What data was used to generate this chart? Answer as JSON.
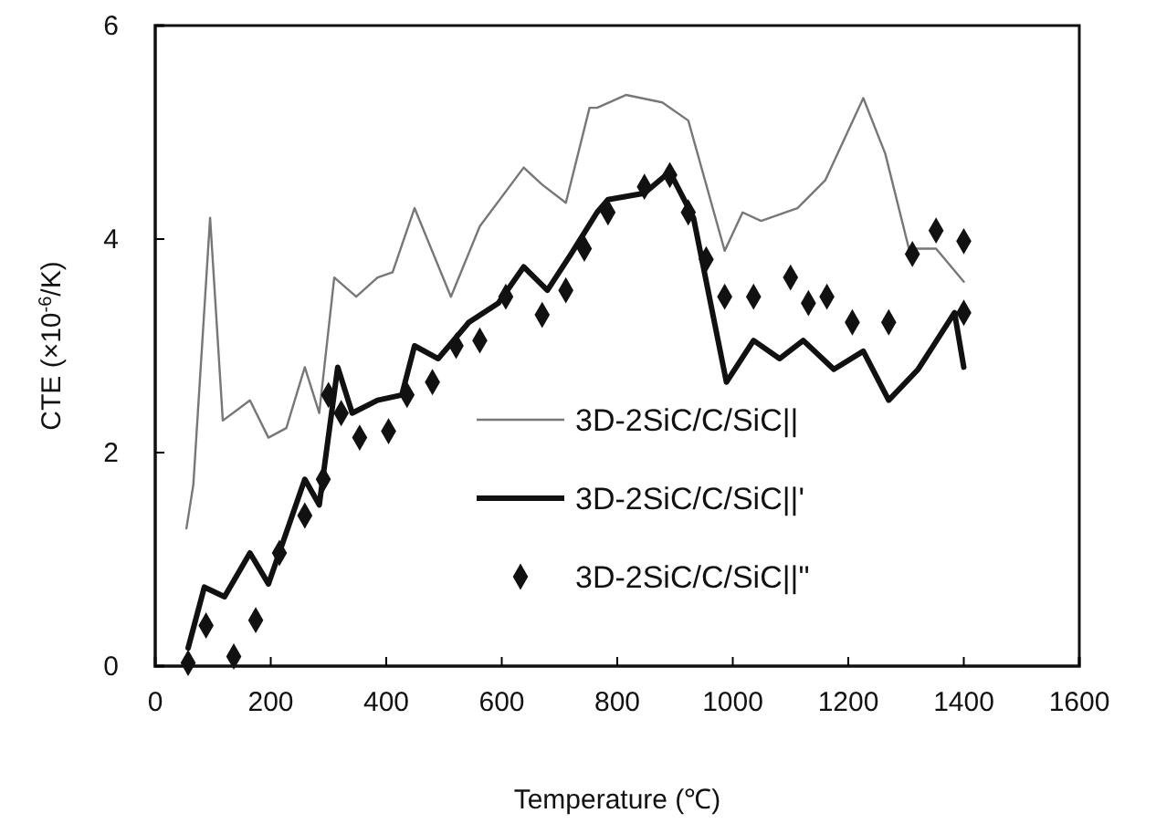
{
  "chart_data": {
    "type": "line",
    "xlabel": "Temperature (℃)",
    "ylabel": "CTE (×10$^{-6}$/K)",
    "xlim": [
      0,
      1600
    ],
    "xticks": [
      0,
      200,
      400,
      600,
      800,
      1000,
      1200,
      1400,
      1600
    ],
    "ylim": [
      0,
      6
    ],
    "yticks": [
      0,
      2,
      4,
      6
    ],
    "grid": false,
    "legend": "bottom right",
    "series": [
      {
        "name": "3D-2SiC/C/SiC||",
        "color": "#777777",
        "line_style": "solid",
        "x": [
          54,
          66,
          95,
          117,
          164,
          196,
          227,
          259,
          284,
          310,
          348,
          385,
          411,
          449,
          512,
          562,
          638,
          670,
          711,
          752,
          765,
          815,
          878,
          923,
          986,
          1017,
          1049,
          1112,
          1160,
          1226,
          1264,
          1305,
          1352,
          1400
        ],
        "values": [
          1.29,
          1.7,
          4.2,
          2.3,
          2.49,
          2.14,
          2.23,
          2.8,
          2.37,
          3.64,
          3.46,
          3.64,
          3.69,
          4.29,
          3.46,
          4.12,
          4.67,
          4.51,
          4.34,
          5.23,
          5.23,
          5.35,
          5.28,
          5.11,
          3.89,
          4.25,
          4.17,
          4.29,
          4.55,
          5.32,
          4.8,
          3.91,
          3.91,
          3.6
        ]
      },
      {
        "name": "3D-2SiC/C/SiC||'",
        "color": "#111111",
        "line_style": "solid",
        "x": [
          57,
          85,
          120,
          164,
          196,
          259,
          284,
          316,
          341,
          385,
          427,
          449,
          490,
          543,
          594,
          638,
          679,
          720,
          765,
          784,
          847,
          891,
          932,
          989,
          1036,
          1081,
          1122,
          1175,
          1226,
          1270,
          1321,
          1384,
          1400
        ],
        "values": [
          0.17,
          0.74,
          0.65,
          1.06,
          0.77,
          1.75,
          1.51,
          2.8,
          2.37,
          2.49,
          2.54,
          3.0,
          2.88,
          3.22,
          3.4,
          3.74,
          3.52,
          3.86,
          4.25,
          4.37,
          4.43,
          4.63,
          4.2,
          2.66,
          3.05,
          2.88,
          3.05,
          2.78,
          2.95,
          2.49,
          2.78,
          3.31,
          2.8
        ]
      },
      {
        "name": "3D-2SiC/C/SiC||\"",
        "color": "#111111",
        "type": "scatter",
        "marker": "diamond",
        "x": [
          57,
          88,
          136,
          174,
          215,
          259,
          291,
          300,
          322,
          354,
          404,
          436,
          480,
          521,
          562,
          607,
          670,
          711,
          743,
          784,
          847,
          891,
          923,
          954,
          986,
          1036,
          1100,
          1131,
          1163,
          1207,
          1270,
          1311,
          1352,
          1400,
          1400
        ],
        "values": [
          0.03,
          0.38,
          0.09,
          0.43,
          1.06,
          1.41,
          1.75,
          2.54,
          2.37,
          2.14,
          2.2,
          2.54,
          2.66,
          3.0,
          3.05,
          3.46,
          3.29,
          3.52,
          3.91,
          4.25,
          4.49,
          4.6,
          4.25,
          3.81,
          3.46,
          3.46,
          3.64,
          3.4,
          3.46,
          3.22,
          3.22,
          3.86,
          4.08,
          3.98,
          3.31
        ]
      }
    ]
  }
}
